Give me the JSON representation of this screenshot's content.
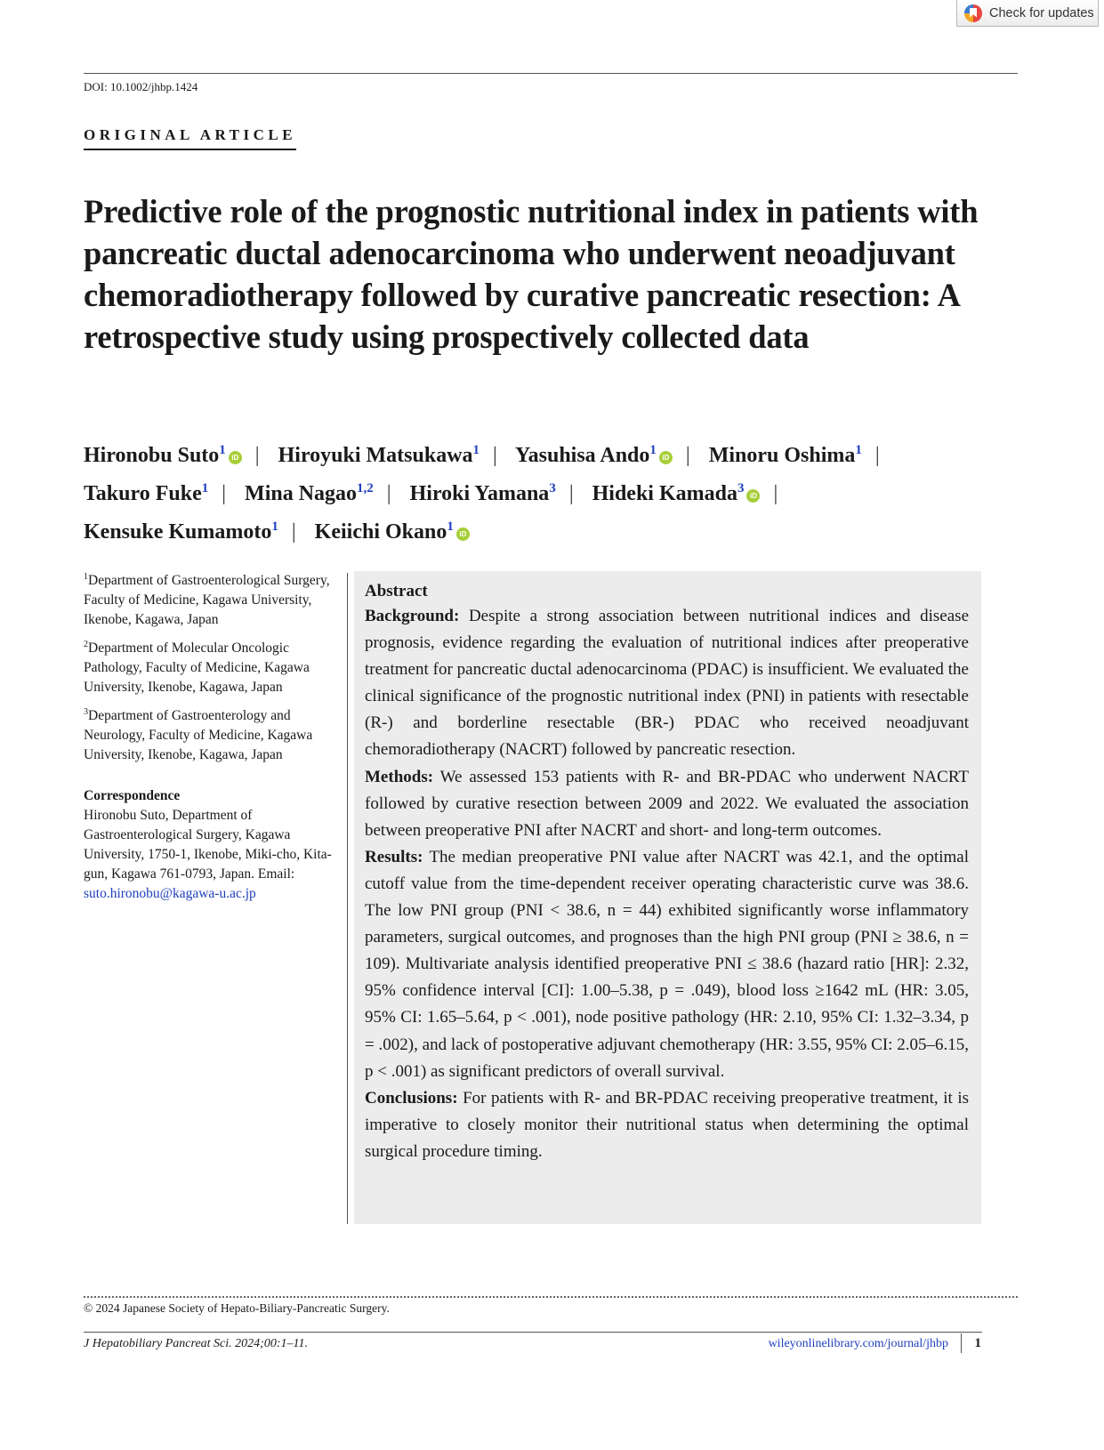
{
  "check_updates": {
    "label": "Check for updates"
  },
  "doi": "DOI: 10.1002/jhbp.1424",
  "kicker": "ORIGINAL ARTICLE",
  "title": "Predictive role of the prognostic nutritional index in patients with pancreatic ductal adenocarcinoma who underwent neoadjuvant chemoradiotherapy followed by curative pancreatic resection: A retrospective study using prospectively collected data",
  "authors": [
    {
      "name": "Hironobu Suto",
      "sup": "1",
      "orcid": true
    },
    {
      "name": "Hiroyuki Matsukawa",
      "sup": "1",
      "orcid": false
    },
    {
      "name": "Yasuhisa Ando",
      "sup": "1",
      "orcid": true
    },
    {
      "name": "Minoru Oshima",
      "sup": "1",
      "orcid": false
    },
    {
      "name": "Takuro Fuke",
      "sup": "1",
      "orcid": false
    },
    {
      "name": "Mina Nagao",
      "sup": "1,2",
      "orcid": false
    },
    {
      "name": "Hiroki Yamana",
      "sup": "3",
      "orcid": false
    },
    {
      "name": "Hideki Kamada",
      "sup": "3",
      "orcid": true
    },
    {
      "name": "Kensuke Kumamoto",
      "sup": "1",
      "orcid": false
    },
    {
      "name": "Keiichi Okano",
      "sup": "1",
      "orcid": true
    }
  ],
  "affiliations": [
    {
      "sup": "1",
      "text": "Department of Gastroenterological Surgery, Faculty of Medicine, Kagawa University, Ikenobe, Kagawa, Japan"
    },
    {
      "sup": "2",
      "text": "Department of Molecular Oncologic Pathology, Faculty of Medicine, Kagawa University, Ikenobe, Kagawa, Japan"
    },
    {
      "sup": "3",
      "text": "Department of Gastroenterology and Neurology, Faculty of Medicine, Kagawa University, Ikenobe, Kagawa, Japan"
    }
  ],
  "correspondence": {
    "heading": "Correspondence",
    "text": "Hironobu Suto, Department of Gastroenterological Surgery, Kagawa University, 1750-1, Ikenobe, Miki-cho, Kita-gun, Kagawa 761-0793, Japan.",
    "email_label": "Email:",
    "email": "suto.hironobu@kagawa-u.ac.jp"
  },
  "abstract": {
    "heading": "Abstract",
    "background_label": "Background:",
    "background": "Despite a strong association between nutritional indices and disease prognosis, evidence regarding the evaluation of nutritional indices after preoperative treatment for pancreatic ductal adenocarcinoma (PDAC) is insufficient. We evaluated the clinical significance of the prognostic nutritional index (PNI) in patients with resectable (R-) and borderline resectable (BR-) PDAC who received neoadjuvant chemoradiotherapy (NACRT) followed by pancreatic resection.",
    "methods_label": "Methods:",
    "methods": "We assessed 153 patients with R- and BR-PDAC who underwent NACRT followed by curative resection between 2009 and 2022. We evaluated the association between preoperative PNI after NACRT and short- and long-term outcomes.",
    "results_label": "Results:",
    "results": "The median preoperative PNI value after NACRT was 42.1, and the optimal cutoff value from the time-dependent receiver operating characteristic curve was 38.6. The low PNI group (PNI < 38.6, n = 44) exhibited significantly worse inflammatory parameters, surgical outcomes, and prognoses than the high PNI group (PNI ≥ 38.6, n = 109). Multivariate analysis identified preoperative PNI ≤ 38.6 (hazard ratio [HR]: 2.32, 95% confidence interval [CI]: 1.00–5.38, p = .049), blood loss ≥1642 mL (HR: 3.05, 95% CI: 1.65–5.64, p < .001), node positive pathology (HR: 2.10, 95% CI: 1.32–3.34, p = .002), and lack of postoperative adjuvant chemotherapy (HR: 3.55, 95% CI: 2.05–6.15, p < .001) as significant predictors of overall survival.",
    "conclusions_label": "Conclusions:",
    "conclusions": "For patients with R- and BR-PDAC receiving preoperative treatment, it is imperative to closely monitor their nutritional status when determining the optimal surgical procedure timing."
  },
  "copyright": "© 2024 Japanese Society of Hepato-Biliary-Pancreatic Surgery.",
  "footer": {
    "citation": "J Hepatobiliary Pancreat Sci. 2024;00:1–11.",
    "link": "wileyonlinelibrary.com/journal/jhbp",
    "page": "1"
  }
}
